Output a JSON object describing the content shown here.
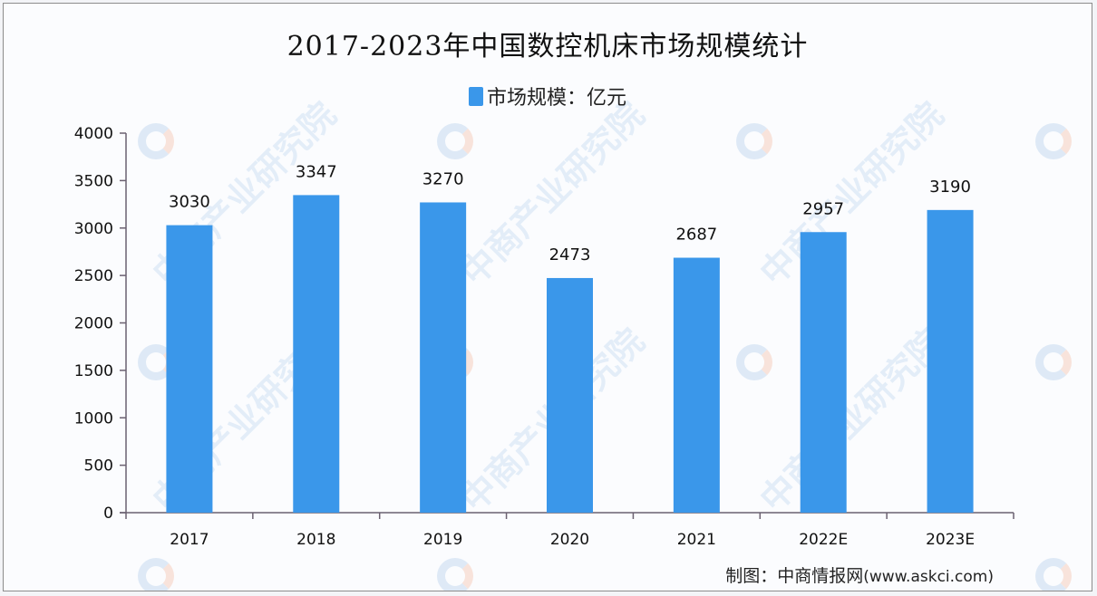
{
  "title": "2017-2023年中国数控机床市场规模统计",
  "legend": {
    "label": "市场规模：亿元",
    "color": "#3a97ea"
  },
  "source": {
    "prefix": "制图：中商情报网",
    "url": "(www.askci.com)"
  },
  "watermark": {
    "text": "中商产业研究院"
  },
  "chart_data": {
    "type": "bar",
    "title": "2017-2023年中国数控机床市场规模统计",
    "xlabel": "",
    "ylabel": "",
    "categories": [
      "2017",
      "2018",
      "2019",
      "2020",
      "2021",
      "2022E",
      "2023E"
    ],
    "series": [
      {
        "name": "市场规模：亿元",
        "values": [
          3030,
          3347,
          3270,
          2473,
          2687,
          2957,
          3190
        ],
        "color": "#3a97ea"
      }
    ],
    "ylim": [
      0,
      4000
    ],
    "yticks": [
      0,
      500,
      1000,
      1500,
      2000,
      2500,
      3000,
      3500,
      4000
    ],
    "grid": false,
    "legend_position": "top",
    "data_labels": true
  }
}
